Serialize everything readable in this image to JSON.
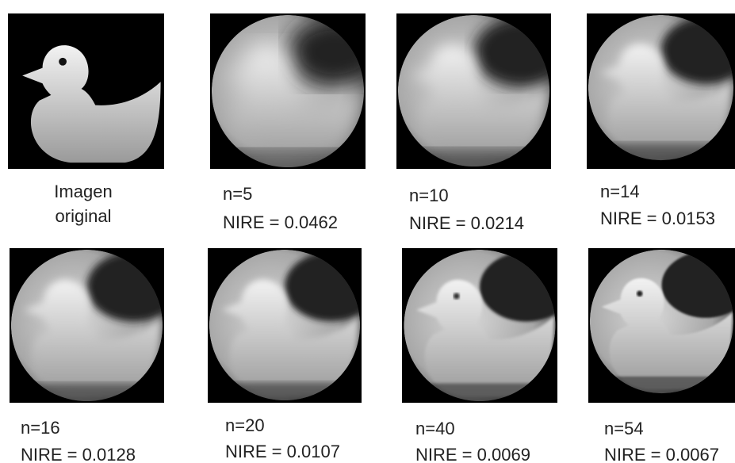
{
  "panels": [
    {
      "caption": [
        "Imagen",
        "original"
      ]
    },
    {
      "caption": [
        "n=5",
        "NIRE = 0.0462"
      ]
    },
    {
      "caption": [
        "n=10",
        "NIRE = 0.0214"
      ]
    },
    {
      "caption": [
        "n=14",
        "NIRE = 0.0153"
      ]
    },
    {
      "caption": [
        "n=16",
        "NIRE = 0.0128"
      ]
    },
    {
      "caption": [
        "n=20",
        "NIRE = 0.0107"
      ]
    },
    {
      "caption": [
        "n=40",
        "NIRE = 0.0069"
      ]
    },
    {
      "caption": [
        "n=54",
        "NIRE = 0.0067"
      ]
    }
  ]
}
